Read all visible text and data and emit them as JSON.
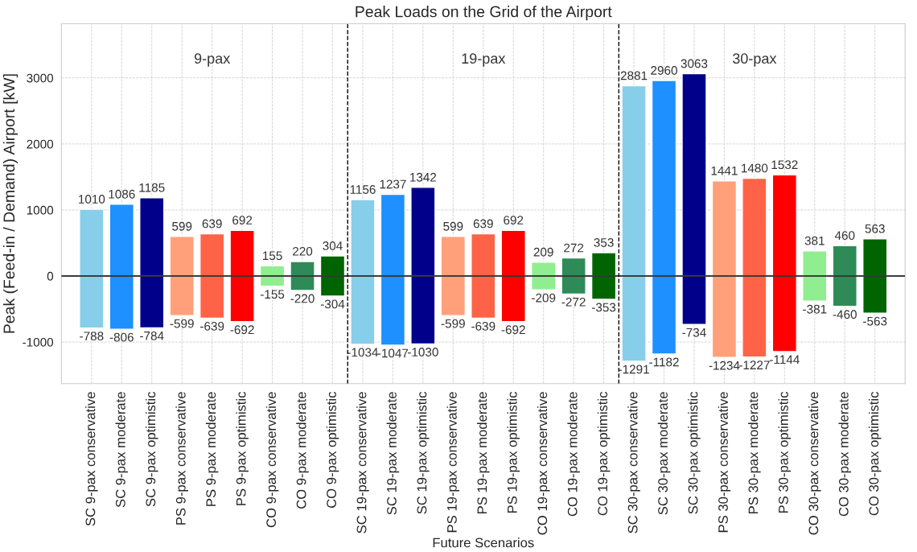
{
  "chart_data": {
    "type": "bar",
    "title": "Peak Loads on the Grid of the Airport",
    "xlabel": "Future Scenarios",
    "ylabel": "Peak (Feed-in / Demand) Airport [kW]",
    "categories": [
      "SC 9-pax conservative",
      "SC 9-pax moderate",
      "SC 9-pax optimistic",
      "PS 9-pax conservative",
      "PS 9-pax moderate",
      "PS 9-pax optimistic",
      "CO 9-pax conservative",
      "CO 9-pax moderate",
      "CO 9-pax optimistic",
      "SC 19-pax conservative",
      "SC 19-pax moderate",
      "SC 19-pax optimistic",
      "PS 19-pax conservative",
      "PS 19-pax moderate",
      "PS 19-pax optimistic",
      "CO 19-pax conservative",
      "CO 19-pax moderate",
      "CO 19-pax optimistic",
      "SC 30-pax conservative",
      "SC 30-pax moderate",
      "SC 30-pax optimistic",
      "PS 30-pax conservative",
      "PS 30-pax moderate",
      "PS 30-pax optimistic",
      "CO 30-pax conservative",
      "CO 30-pax moderate",
      "CO 30-pax optimistic"
    ],
    "series": [
      {
        "colors": [
          "#87ceeb",
          "#1e90ff",
          "#00008b",
          "#ffa07a",
          "#ff6347",
          "#ff0000",
          "#90ee90",
          "#2e8b57",
          "#006400",
          "#87ceeb",
          "#1e90ff",
          "#00008b",
          "#ffa07a",
          "#ff6347",
          "#ff0000",
          "#90ee90",
          "#2e8b57",
          "#006400",
          "#87ceeb",
          "#1e90ff",
          "#00008b",
          "#ffa07a",
          "#ff6347",
          "#ff0000",
          "#90ee90",
          "#2e8b57",
          "#006400"
        ],
        "values": [
          1010,
          1086,
          1185,
          599,
          639,
          692,
          155,
          220,
          304,
          1156,
          1237,
          1342,
          599,
          639,
          692,
          209,
          272,
          353,
          2881,
          2960,
          3063,
          1441,
          1480,
          1532,
          381,
          460,
          563
        ]
      },
      {
        "colors": [
          "#87ceeb",
          "#1e90ff",
          "#00008b",
          "#ffa07a",
          "#ff6347",
          "#ff0000",
          "#90ee90",
          "#2e8b57",
          "#006400",
          "#87ceeb",
          "#1e90ff",
          "#00008b",
          "#ffa07a",
          "#ff6347",
          "#ff0000",
          "#90ee90",
          "#2e8b57",
          "#006400",
          "#87ceeb",
          "#1e90ff",
          "#00008b",
          "#ffa07a",
          "#ff6347",
          "#ff0000",
          "#90ee90",
          "#2e8b57",
          "#006400"
        ],
        "values": [
          -788,
          -806,
          -784,
          -599,
          -639,
          -692,
          -155,
          -220,
          -304,
          -1034,
          -1047,
          -1030,
          -599,
          -639,
          -692,
          -209,
          -272,
          -353,
          -1291,
          -1182,
          -734,
          -1234,
          -1227,
          -1144,
          -381,
          -460,
          -563
        ]
      }
    ],
    "ylim": [
      -1630,
      3820
    ],
    "yticks": [
      -1000,
      0,
      1000,
      2000,
      3000
    ],
    "grid": true,
    "data_labels": true,
    "stacked": true,
    "ref_lines": [
      {
        "axis": "y",
        "value": 0,
        "color": "#000000",
        "line_style": "solid"
      }
    ],
    "annotations": [
      "9-pax",
      "19-pax",
      "30-pax"
    ]
  }
}
